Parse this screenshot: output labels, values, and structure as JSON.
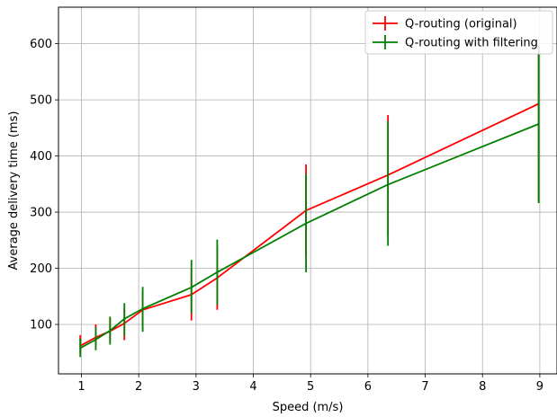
{
  "chart_data": {
    "type": "line",
    "title": "",
    "xlabel": "Speed (m/s)",
    "ylabel": "Average delivery time (ms)",
    "xlim": [
      0.6,
      9.3
    ],
    "ylim": [
      12,
      665
    ],
    "xticks": [
      1,
      2,
      3,
      4,
      5,
      6,
      7,
      8,
      9
    ],
    "yticks": [
      100,
      200,
      300,
      400,
      500,
      600
    ],
    "grid": true,
    "legend_position": "top-right",
    "series": [
      {
        "name": "Q-routing (original)",
        "color": "#ff0000",
        "x": [
          0.98,
          1.25,
          1.5,
          1.75,
          2.07,
          2.92,
          3.37,
          4.92,
          6.35,
          8.98
        ],
        "y": [
          62,
          77,
          88,
          102,
          126,
          153,
          183,
          303,
          366,
          493
        ],
        "err_low": [
          50,
          62,
          70,
          72,
          92,
          107,
          126,
          220,
          258,
          320
        ],
        "err_high": [
          81,
          100,
          112,
          128,
          160,
          200,
          240,
          385,
          473,
          592
        ]
      },
      {
        "name": "Q-routing with filtering",
        "color": "#008000",
        "x": [
          0.98,
          1.25,
          1.5,
          1.75,
          2.07,
          2.92,
          3.37,
          4.92,
          6.35,
          8.98
        ],
        "y": [
          58,
          73,
          89,
          110,
          128,
          166,
          193,
          280,
          349,
          457
        ],
        "err_low": [
          42,
          54,
          64,
          80,
          87,
          120,
          135,
          193,
          240,
          316
        ],
        "err_high": [
          75,
          95,
          114,
          138,
          167,
          215,
          251,
          368,
          462,
          597
        ]
      }
    ]
  }
}
